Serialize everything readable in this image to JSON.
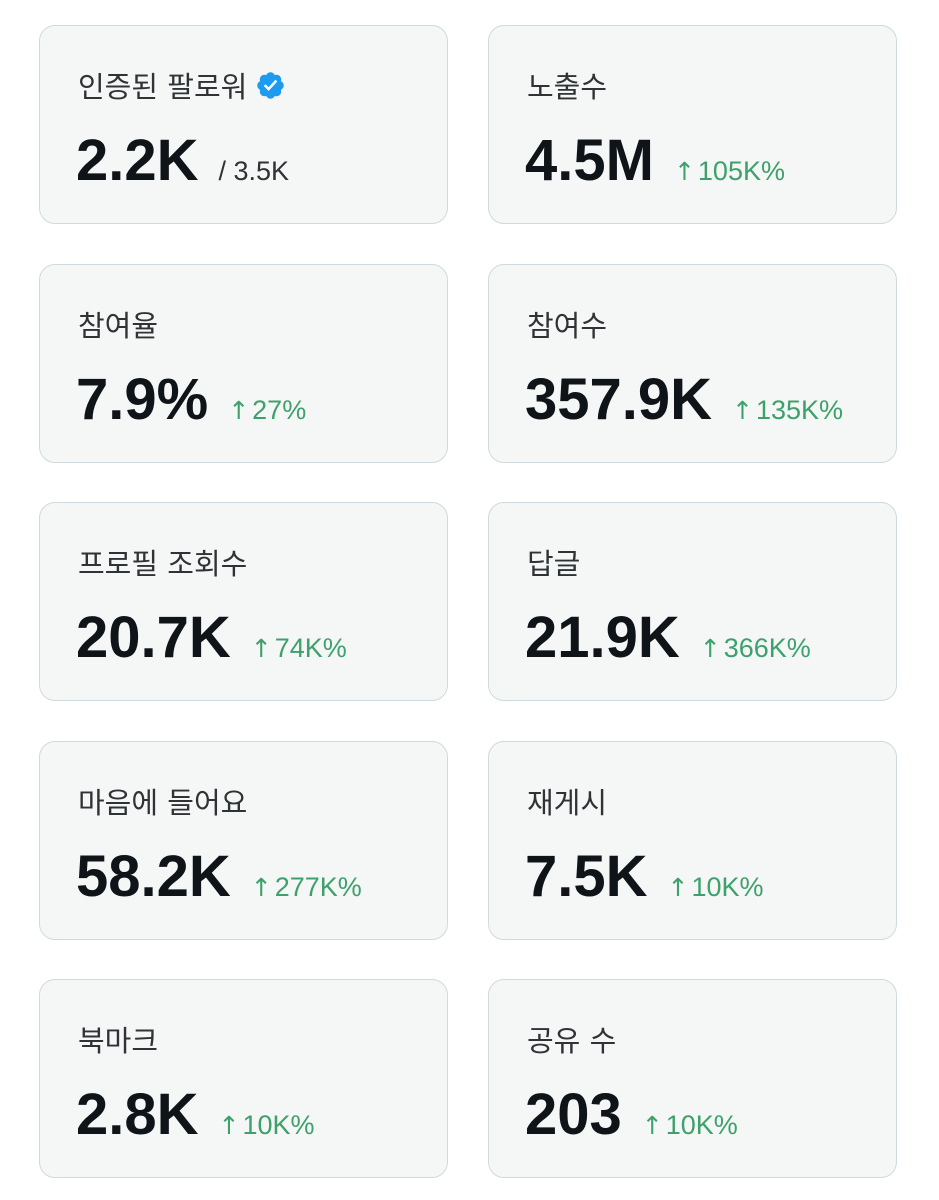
{
  "cards": [
    {
      "label": "인증된 팔로워",
      "value": "2.2K",
      "sub": "/ 3.5K",
      "verified": true,
      "verified_color": "#1d9bf0"
    },
    {
      "label": "노출수",
      "value": "4.5M",
      "change": "105K%",
      "arrow": "↑",
      "change_color": "#3ea06a"
    },
    {
      "label": "참여율",
      "value": "7.9%",
      "change": "27%",
      "arrow": "↑"
    },
    {
      "label": "참여수",
      "value": "357.9K",
      "change": "135K%",
      "arrow": "↑"
    },
    {
      "label": "프로필 조회수",
      "value": "20.7K",
      "change": "74K%",
      "arrow": "↑"
    },
    {
      "label": "답글",
      "value": "21.9K",
      "change": "366K%",
      "arrow": "↑"
    },
    {
      "label": "마음에 들어요",
      "value": "58.2K",
      "change": "277K%",
      "arrow": "↑"
    },
    {
      "label": "재게시",
      "value": "7.5K",
      "change": "10K%",
      "arrow": "↑"
    },
    {
      "label": "북마크",
      "value": "2.8K",
      "change": "10K%",
      "arrow": "↑"
    },
    {
      "label": "공유 수",
      "value": "203",
      "change": "10K%",
      "arrow": "↑"
    }
  ]
}
